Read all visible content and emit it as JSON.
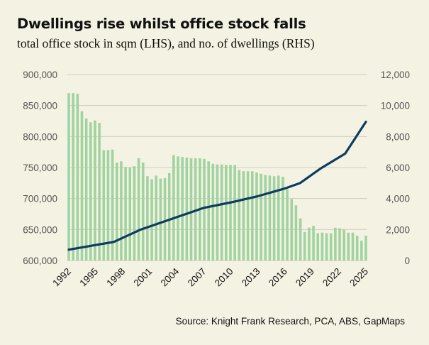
{
  "title": "Dwellings rise whilst office stock falls",
  "subtitle": "total office stock in sqm (LHS), and no. of dwellings (RHS)",
  "source": "Source: Knight Frank Research, PCA, ABS, GapMaps",
  "colors": {
    "background": "#F4F2E3",
    "bars": "#9FD39F",
    "line": "#0E3B61",
    "gridline": "#CFCDBE",
    "tick_text": "#555555"
  },
  "chart_data": {
    "type": "bar",
    "title": "Dwellings rise whilst office stock falls",
    "left_axis": {
      "min": 600000,
      "max": 900000,
      "ticks": [
        600000,
        650000,
        700000,
        750000,
        800000,
        850000,
        900000
      ],
      "tick_labels": [
        "600,000",
        "650,000",
        "700,000",
        "750,000",
        "800,000",
        "850,000",
        "900,000"
      ]
    },
    "right_axis": {
      "min": 0,
      "max": 12000,
      "ticks": [
        0,
        2000,
        4000,
        6000,
        8000,
        10000,
        12000
      ],
      "tick_labels": [
        "0",
        "2,000",
        "4,000",
        "6,000",
        "8,000",
        "10,000",
        "12,000"
      ]
    },
    "x_tick_labels": [
      "1992",
      "1995",
      "1998",
      "2001",
      "2004",
      "2007",
      "2010",
      "2013",
      "2016",
      "2019",
      "2022",
      "2025"
    ],
    "x_tick_years": [
      1992,
      1995,
      1998,
      2001,
      2004,
      2007,
      2010,
      2013,
      2016,
      2019,
      2022,
      2025
    ],
    "x_range": [
      1992,
      2025
    ],
    "grid": true,
    "legend": "none",
    "series": [
      {
        "type": "bar",
        "axis": "left",
        "values": [
          870000,
          870000,
          869000,
          841000,
          829000,
          823000,
          826000,
          822000,
          778000,
          778000,
          779000,
          758000,
          760000,
          751000,
          750000,
          752000,
          765000,
          758000,
          736000,
          731000,
          737000,
          732000,
          733000,
          741000,
          770000,
          768000,
          767000,
          766000,
          765000,
          765000,
          765000,
          764000,
          760000,
          756000,
          755000,
          755000,
          754000,
          754000,
          754000,
          746000,
          744000,
          744000,
          744000,
          742000,
          740000,
          738000,
          737000,
          736000,
          737000,
          735000,
          715000,
          699000,
          689000,
          668000,
          646000,
          653000,
          656000,
          644000,
          645000,
          644000,
          644000,
          653000,
          652000,
          650000,
          645000,
          645000,
          640000,
          632000,
          640000
        ]
      },
      {
        "type": "line",
        "axis": "right",
        "x": [
          1992,
          1997,
          2000,
          2004,
          2007,
          2010,
          2013,
          2016,
          2017.7,
          2020,
          2022.7,
          2025
        ],
        "values": [
          700,
          1200,
          2000,
          2800,
          3400,
          3750,
          4150,
          4650,
          5000,
          5950,
          6900,
          8950
        ]
      }
    ]
  }
}
